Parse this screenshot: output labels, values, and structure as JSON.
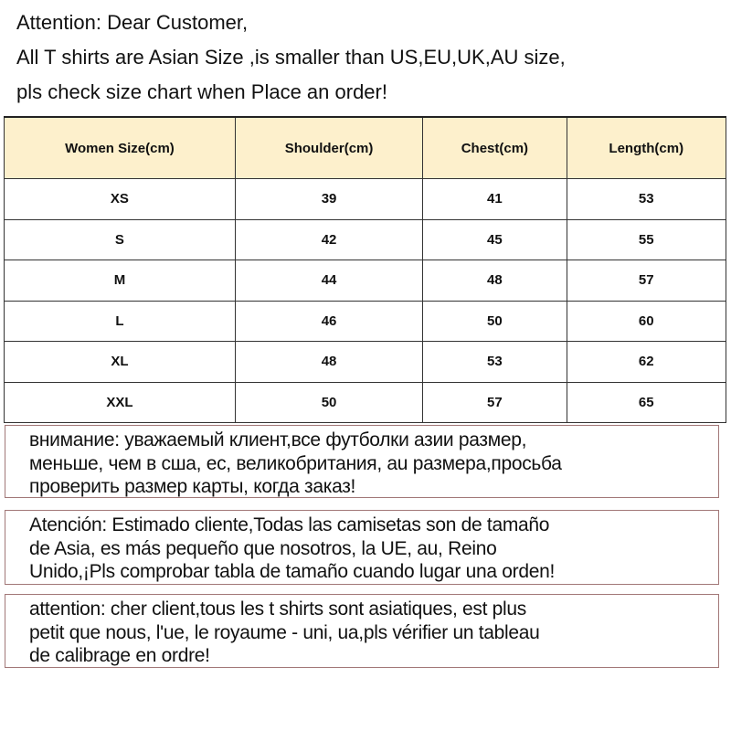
{
  "intro": {
    "lines": [
      "Attention: Dear Customer,",
      "All T shirts are  Asian Size ,is smaller than US,EU,UK,AU size,",
      "pls check size chart when Place an order!"
    ]
  },
  "size_table": {
    "headers": [
      "Women Size(cm)",
      "Shoulder(cm)",
      "Chest(cm)",
      "Length(cm)"
    ],
    "rows": [
      [
        "XS",
        "39",
        "41",
        "53"
      ],
      [
        "S",
        "42",
        "45",
        "55"
      ],
      [
        "M",
        "44",
        "48",
        "57"
      ],
      [
        "L",
        "46",
        "50",
        "60"
      ],
      [
        "XL",
        "48",
        "53",
        "62"
      ],
      [
        "XXL",
        "50",
        "57",
        "65"
      ]
    ],
    "header_color": "#fdf0cc"
  },
  "notices": {
    "russian": [
      "внимание: уважаемый клиент,все футболки азии размер,",
      "меньше, чем в сша, ес, великобритания, au размера,просьба",
      "проверить размер карты, когда заказ!"
    ],
    "spanish": [
      "Atención: Estimado cliente,Todas las camisetas son de tamaño",
      "de Asia, es más pequeño que nosotros, la UE, au, Reino",
      "Unido,¡Pls comprobar tabla de tamaño cuando lugar una orden!"
    ],
    "french": [
      "attention: cher client,tous les t shirts sont asiatiques, est plus",
      "petit que nous, l'ue, le royaume - uni, ua,pls vérifier un tableau",
      "de calibrage en ordre!"
    ],
    "border_color": "#a27878"
  }
}
